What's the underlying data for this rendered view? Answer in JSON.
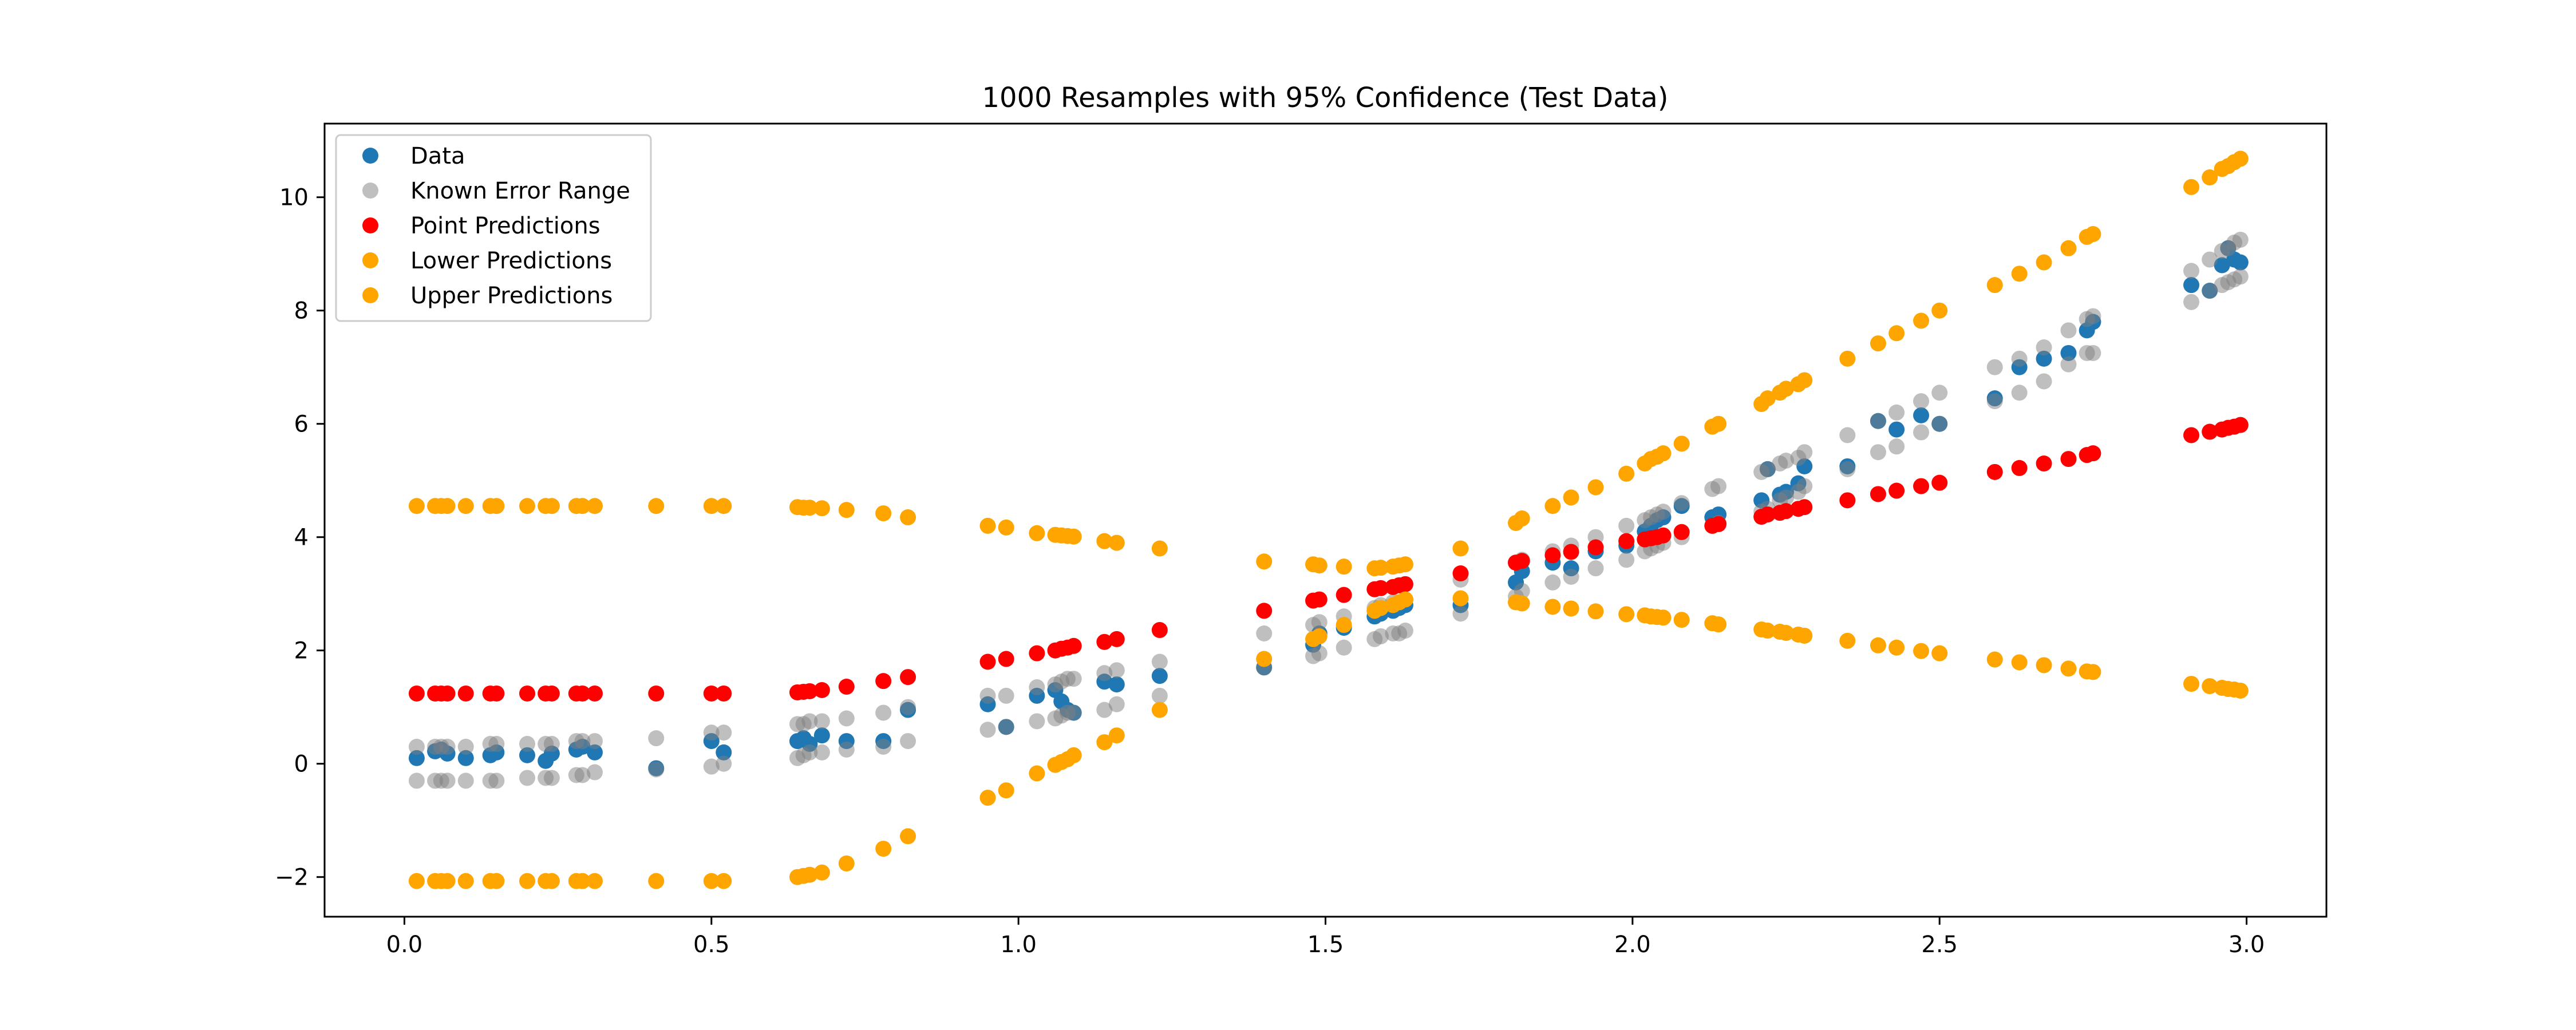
{
  "chart_data": {
    "type": "scatter",
    "title": "1000 Resamples with 95% Confidence (Test Data)",
    "xlabel": "",
    "ylabel": "",
    "xlim": [
      -0.13,
      3.13
    ],
    "ylim": [
      -2.7,
      11.3
    ],
    "xticks": [
      0.0,
      0.5,
      1.0,
      1.5,
      2.0,
      2.5,
      3.0
    ],
    "xtick_labels": [
      "0.0",
      "0.5",
      "1.0",
      "1.5",
      "2.0",
      "2.5",
      "3.0"
    ],
    "yticks": [
      -2,
      0,
      2,
      4,
      6,
      8,
      10
    ],
    "ytick_labels": [
      "−2",
      "0",
      "2",
      "4",
      "6",
      "8",
      "10"
    ],
    "grid": false,
    "legend_position": "top-left",
    "x": [
      0.02,
      0.05,
      0.06,
      0.07,
      0.1,
      0.14,
      0.15,
      0.2,
      0.23,
      0.24,
      0.28,
      0.29,
      0.31,
      0.41,
      0.5,
      0.52,
      0.64,
      0.65,
      0.66,
      0.68,
      0.72,
      0.78,
      0.82,
      0.95,
      0.98,
      1.03,
      1.06,
      1.07,
      1.08,
      1.09,
      1.14,
      1.16,
      1.23,
      1.4,
      1.48,
      1.49,
      1.53,
      1.58,
      1.59,
      1.61,
      1.62,
      1.63,
      1.72,
      1.81,
      1.82,
      1.87,
      1.9,
      1.94,
      1.99,
      2.02,
      2.03,
      2.04,
      2.05,
      2.08,
      2.13,
      2.14,
      2.21,
      2.22,
      2.24,
      2.25,
      2.27,
      2.28,
      2.35,
      2.4,
      2.43,
      2.47,
      2.5,
      2.59,
      2.63,
      2.67,
      2.71,
      2.74,
      2.75,
      2.91,
      2.94,
      2.96,
      2.97,
      2.98,
      2.99
    ],
    "series": [
      {
        "name": "Data",
        "color": "#1f77b4",
        "values": [
          0.1,
          0.22,
          0.25,
          0.18,
          0.1,
          0.15,
          0.2,
          0.15,
          0.05,
          0.18,
          0.25,
          0.3,
          0.2,
          -0.08,
          0.4,
          0.2,
          0.4,
          0.45,
          0.35,
          0.5,
          0.4,
          0.4,
          0.95,
          1.05,
          0.65,
          1.2,
          1.3,
          1.1,
          0.95,
          0.9,
          1.45,
          1.4,
          1.55,
          1.7,
          2.1,
          2.3,
          2.4,
          2.6,
          2.65,
          2.7,
          2.75,
          2.8,
          2.8,
          3.2,
          3.4,
          3.55,
          3.45,
          3.75,
          3.85,
          4.1,
          4.2,
          4.3,
          4.35,
          4.55,
          4.35,
          4.4,
          4.65,
          5.2,
          4.75,
          4.8,
          4.95,
          5.25,
          5.25,
          6.05,
          5.9,
          6.15,
          6.0,
          6.45,
          7.0,
          7.15,
          7.25,
          7.65,
          7.8,
          8.45,
          8.35,
          8.8,
          9.1,
          8.9,
          8.85
        ]
      },
      {
        "name": "Known Error Range",
        "color": "#7f7f7f",
        "lower": [
          -0.3,
          -0.3,
          -0.3,
          -0.3,
          -0.3,
          -0.3,
          -0.3,
          -0.25,
          -0.25,
          -0.25,
          -0.2,
          -0.2,
          -0.15,
          -0.1,
          -0.05,
          0.0,
          0.1,
          0.15,
          0.2,
          0.2,
          0.25,
          0.3,
          0.4,
          0.6,
          0.65,
          0.75,
          0.8,
          0.85,
          0.9,
          0.9,
          0.95,
          1.05,
          1.2,
          1.7,
          1.9,
          1.95,
          2.05,
          2.2,
          2.25,
          2.3,
          2.3,
          2.35,
          2.65,
          2.95,
          3.05,
          3.2,
          3.3,
          3.45,
          3.6,
          3.75,
          3.8,
          3.85,
          3.9,
          4.0,
          4.2,
          4.25,
          4.45,
          4.5,
          4.65,
          4.7,
          4.8,
          4.9,
          5.2,
          5.5,
          5.6,
          5.85,
          6.0,
          6.4,
          6.55,
          6.75,
          7.05,
          7.25,
          7.25,
          8.15,
          8.35,
          8.45,
          8.5,
          8.55,
          8.6
        ],
        "upper": [
          0.3,
          0.3,
          0.3,
          0.3,
          0.3,
          0.35,
          0.35,
          0.35,
          0.35,
          0.35,
          0.4,
          0.4,
          0.4,
          0.45,
          0.55,
          0.55,
          0.7,
          0.7,
          0.75,
          0.75,
          0.8,
          0.9,
          1.0,
          1.2,
          1.2,
          1.35,
          1.4,
          1.45,
          1.5,
          1.5,
          1.6,
          1.65,
          1.8,
          2.3,
          2.45,
          2.5,
          2.6,
          2.75,
          2.8,
          2.85,
          2.85,
          2.9,
          3.25,
          3.55,
          3.6,
          3.75,
          3.85,
          4.0,
          4.2,
          4.3,
          4.35,
          4.4,
          4.45,
          4.6,
          4.85,
          4.9,
          5.15,
          5.2,
          5.3,
          5.35,
          5.4,
          5.5,
          5.8,
          6.05,
          6.2,
          6.4,
          6.55,
          7.0,
          7.15,
          7.35,
          7.65,
          7.85,
          7.9,
          8.7,
          8.9,
          9.05,
          9.1,
          9.2,
          9.25
        ]
      },
      {
        "name": "Point Predictions",
        "color": "#ff0000",
        "values": [
          1.24,
          1.24,
          1.24,
          1.24,
          1.24,
          1.24,
          1.24,
          1.24,
          1.24,
          1.24,
          1.24,
          1.24,
          1.24,
          1.24,
          1.24,
          1.24,
          1.26,
          1.27,
          1.28,
          1.3,
          1.36,
          1.46,
          1.53,
          1.8,
          1.85,
          1.95,
          2.0,
          2.03,
          2.05,
          2.08,
          2.15,
          2.2,
          2.36,
          2.7,
          2.88,
          2.9,
          2.98,
          3.08,
          3.1,
          3.12,
          3.15,
          3.17,
          3.36,
          3.55,
          3.58,
          3.68,
          3.74,
          3.82,
          3.93,
          3.96,
          3.98,
          4.0,
          4.03,
          4.09,
          4.2,
          4.23,
          4.36,
          4.4,
          4.43,
          4.46,
          4.5,
          4.53,
          4.65,
          4.76,
          4.82,
          4.9,
          4.96,
          5.15,
          5.22,
          5.3,
          5.38,
          5.45,
          5.48,
          5.8,
          5.86,
          5.9,
          5.93,
          5.95,
          5.98
        ]
      },
      {
        "name": "Lower Predictions",
        "color": "#ffa500",
        "values": [
          -2.07,
          -2.07,
          -2.07,
          -2.07,
          -2.07,
          -2.07,
          -2.07,
          -2.07,
          -2.07,
          -2.07,
          -2.07,
          -2.07,
          -2.07,
          -2.07,
          -2.07,
          -2.07,
          -2.0,
          -1.98,
          -1.96,
          -1.92,
          -1.76,
          -1.5,
          -1.28,
          -0.6,
          -0.47,
          -0.17,
          -0.02,
          0.03,
          0.08,
          0.15,
          0.38,
          0.5,
          0.95,
          1.85,
          2.2,
          2.25,
          2.45,
          2.7,
          2.75,
          2.8,
          2.85,
          2.9,
          2.92,
          2.85,
          2.83,
          2.77,
          2.74,
          2.69,
          2.64,
          2.62,
          2.6,
          2.59,
          2.58,
          2.54,
          2.48,
          2.46,
          2.37,
          2.35,
          2.33,
          2.31,
          2.28,
          2.26,
          2.17,
          2.09,
          2.05,
          1.99,
          1.95,
          1.84,
          1.79,
          1.74,
          1.68,
          1.63,
          1.62,
          1.41,
          1.37,
          1.34,
          1.32,
          1.31,
          1.29
        ]
      },
      {
        "name": "Upper Predictions",
        "color": "#ffa500",
        "values": [
          4.55,
          4.55,
          4.55,
          4.55,
          4.55,
          4.55,
          4.55,
          4.55,
          4.55,
          4.55,
          4.55,
          4.55,
          4.55,
          4.55,
          4.55,
          4.55,
          4.53,
          4.52,
          4.52,
          4.51,
          4.48,
          4.42,
          4.35,
          4.2,
          4.17,
          4.07,
          4.04,
          4.03,
          4.02,
          4.01,
          3.93,
          3.9,
          3.8,
          3.57,
          3.52,
          3.5,
          3.48,
          3.45,
          3.46,
          3.48,
          3.5,
          3.52,
          3.8,
          4.25,
          4.33,
          4.55,
          4.7,
          4.88,
          5.12,
          5.3,
          5.38,
          5.42,
          5.48,
          5.65,
          5.95,
          6.0,
          6.35,
          6.45,
          6.55,
          6.62,
          6.7,
          6.77,
          7.15,
          7.42,
          7.6,
          7.82,
          8.0,
          8.45,
          8.65,
          8.85,
          9.1,
          9.3,
          9.35,
          10.18,
          10.35,
          10.5,
          10.55,
          10.62,
          10.68
        ]
      }
    ]
  }
}
